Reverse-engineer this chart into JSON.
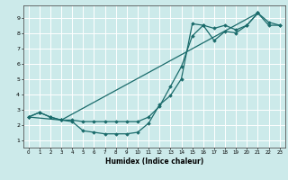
{
  "xlabel": "Humidex (Indice chaleur)",
  "bg_color": "#cceaea",
  "grid_color": "#ffffff",
  "line_color": "#1a6b6b",
  "xlim": [
    -0.5,
    23.5
  ],
  "ylim": [
    0.5,
    9.8
  ],
  "xticks": [
    0,
    1,
    2,
    3,
    4,
    5,
    6,
    7,
    8,
    9,
    10,
    11,
    12,
    13,
    14,
    15,
    16,
    17,
    18,
    19,
    20,
    21,
    22,
    23
  ],
  "yticks": [
    1,
    2,
    3,
    4,
    5,
    6,
    7,
    8,
    9
  ],
  "line1_x": [
    0,
    1,
    2,
    3,
    4,
    5,
    6,
    7,
    8,
    9,
    10,
    11,
    12,
    13,
    14,
    15,
    16,
    17,
    18,
    19,
    20,
    21,
    22,
    23
  ],
  "line1_y": [
    2.5,
    2.8,
    2.5,
    2.3,
    2.2,
    1.6,
    1.5,
    1.4,
    1.4,
    1.4,
    1.5,
    2.1,
    3.3,
    3.9,
    5.0,
    8.6,
    8.5,
    7.5,
    8.1,
    8.0,
    8.5,
    9.3,
    8.7,
    8.5
  ],
  "line2_x": [
    0,
    1,
    2,
    3,
    4,
    5,
    6,
    7,
    8,
    9,
    10,
    11,
    12,
    13,
    14,
    15,
    16,
    17,
    18,
    19,
    20,
    21,
    22,
    23
  ],
  "line2_y": [
    2.5,
    2.8,
    2.5,
    2.3,
    2.3,
    2.2,
    2.2,
    2.2,
    2.2,
    2.2,
    2.2,
    2.5,
    3.2,
    4.5,
    5.8,
    7.8,
    8.5,
    8.3,
    8.5,
    8.2,
    8.5,
    9.3,
    8.5,
    8.5
  ],
  "line3_x": [
    0,
    3,
    21
  ],
  "line3_y": [
    2.5,
    2.3,
    9.3
  ]
}
